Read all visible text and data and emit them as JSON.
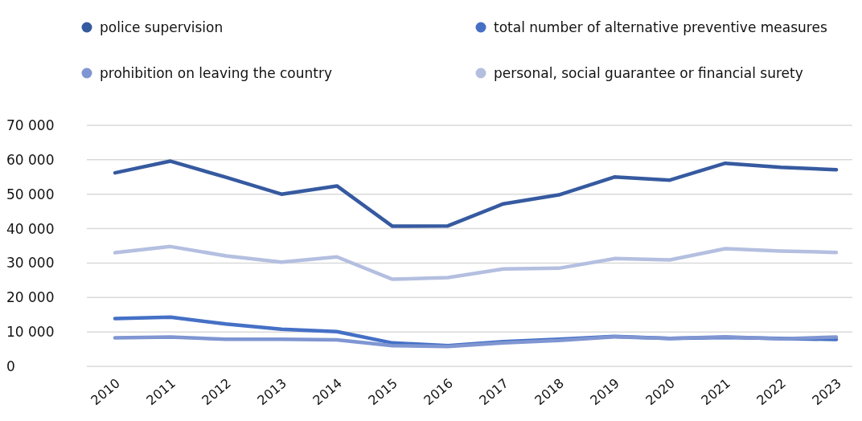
{
  "chart_data": {
    "type": "line",
    "categories": [
      "2010",
      "2011",
      "2012",
      "2013",
      "2014",
      "2015",
      "2016",
      "2017",
      "2018",
      "2019",
      "2020",
      "2021",
      "2022",
      "2023"
    ],
    "series": [
      {
        "name": "police supervision",
        "color": "#365aa0",
        "values": [
          56200,
          59600,
          54900,
          50000,
          52400,
          40700,
          40800,
          47200,
          49800,
          55000,
          54100,
          59000,
          57800,
          57100
        ]
      },
      {
        "name": "total number of alternative preventive measures",
        "color": "#4570c6",
        "values": [
          13900,
          14300,
          12300,
          10800,
          10100,
          6800,
          6000,
          7200,
          7900,
          8700,
          8100,
          8400,
          8100,
          7800
        ]
      },
      {
        "name": "prohibition on leaving the country",
        "color": "#7f96d2",
        "values": [
          8300,
          8500,
          7900,
          7900,
          7700,
          6000,
          5800,
          6800,
          7500,
          8600,
          8100,
          8600,
          8000,
          8500
        ]
      },
      {
        "name": "personal, social guarantee or financial surety",
        "color": "#b4bfe0",
        "values": [
          33000,
          34800,
          32100,
          30300,
          31800,
          25300,
          25800,
          28300,
          28500,
          31300,
          30900,
          34200,
          33500,
          33100
        ]
      }
    ],
    "ylim": [
      0,
      70000
    ],
    "yticks": [
      0,
      {
        "value": 10000,
        "label": "10 000"
      },
      {
        "value": 20000,
        "label": "20 000"
      },
      {
        "value": 30000,
        "label": "30 000"
      },
      {
        "value": 40000,
        "label": "40 000"
      },
      {
        "value": 50000,
        "label": "50 000"
      },
      {
        "value": 60000,
        "label": "60 000"
      },
      {
        "value": 70000,
        "label": "70 000"
      }
    ],
    "grid": "y",
    "legend": "top",
    "marker": "none",
    "line_style": "solid"
  }
}
